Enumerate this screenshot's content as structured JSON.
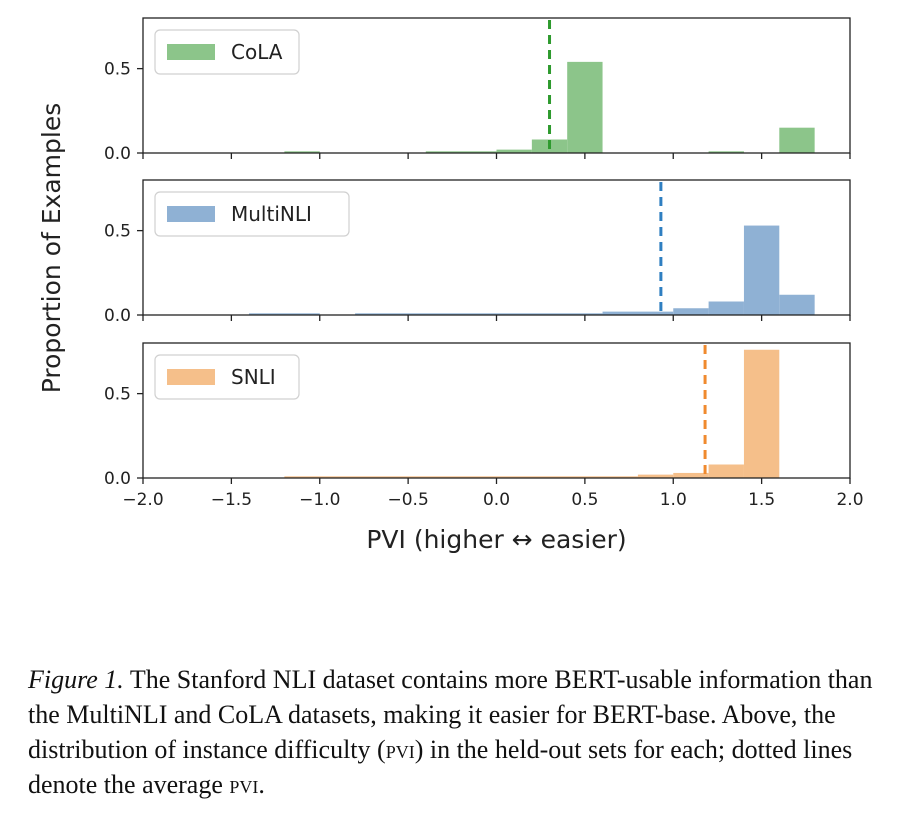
{
  "chart_data": {
    "type": "bar",
    "subtype": "histogram-small-multiples",
    "xlabel": "PVI (higher ↔ easier)",
    "ylabel": "Proportion of Examples",
    "xlim": [
      -2.0,
      2.0
    ],
    "xticks": [
      "−2.0",
      "−1.5",
      "−1.0",
      "−0.5",
      "0.0",
      "0.5",
      "1.0",
      "1.5",
      "2.0"
    ],
    "ylim": [
      0,
      0.8
    ],
    "yticks": [
      "0.0",
      "0.5"
    ],
    "panels": [
      {
        "name": "CoLA",
        "color": "#8cc58a",
        "mean_line": 0.3,
        "mean_color": "#2e9a2e",
        "bins": [
          {
            "x0": -1.2,
            "x1": -1.0,
            "y": 0.01
          },
          {
            "x0": -0.4,
            "x1": 0.0,
            "y": 0.01
          },
          {
            "x0": 0.0,
            "x1": 0.2,
            "y": 0.02
          },
          {
            "x0": 0.2,
            "x1": 0.4,
            "y": 0.08
          },
          {
            "x0": 0.4,
            "x1": 0.6,
            "y": 0.54
          },
          {
            "x0": 1.2,
            "x1": 1.4,
            "y": 0.01
          },
          {
            "x0": 1.6,
            "x1": 1.8,
            "y": 0.15
          }
        ]
      },
      {
        "name": "MultiNLI",
        "color": "#8fb1d4",
        "mean_line": 0.93,
        "mean_color": "#2f7fc1",
        "bins": [
          {
            "x0": -1.4,
            "x1": -1.0,
            "y": 0.01
          },
          {
            "x0": -0.8,
            "x1": 0.6,
            "y": 0.01
          },
          {
            "x0": 0.6,
            "x1": 1.0,
            "y": 0.02
          },
          {
            "x0": 1.0,
            "x1": 1.2,
            "y": 0.04
          },
          {
            "x0": 1.2,
            "x1": 1.4,
            "y": 0.08
          },
          {
            "x0": 1.4,
            "x1": 1.6,
            "y": 0.53
          },
          {
            "x0": 1.6,
            "x1": 1.8,
            "y": 0.12
          }
        ]
      },
      {
        "name": "SNLI",
        "color": "#f5bf8a",
        "mean_line": 1.18,
        "mean_color": "#f08a2e",
        "bins": [
          {
            "x0": -1.2,
            "x1": 0.8,
            "y": 0.01
          },
          {
            "x0": 0.8,
            "x1": 1.0,
            "y": 0.02
          },
          {
            "x0": 1.0,
            "x1": 1.2,
            "y": 0.03
          },
          {
            "x0": 1.2,
            "x1": 1.4,
            "y": 0.08
          },
          {
            "x0": 1.4,
            "x1": 1.6,
            "y": 0.76
          }
        ]
      }
    ],
    "grid": false,
    "legend_placement": "top-left"
  },
  "caption": {
    "label": "Figure 1.",
    "t1": " The Stanford NLI dataset contains more BERT-usable information than the MultiNLI and CoLA datasets, making it easier for BERT-base. Above, the distribution of instance difficulty (",
    "sc1": "pvi",
    "t2": ") in the held-out sets for each; dotted lines denote the average ",
    "sc2": "pvi",
    "t3": "."
  }
}
